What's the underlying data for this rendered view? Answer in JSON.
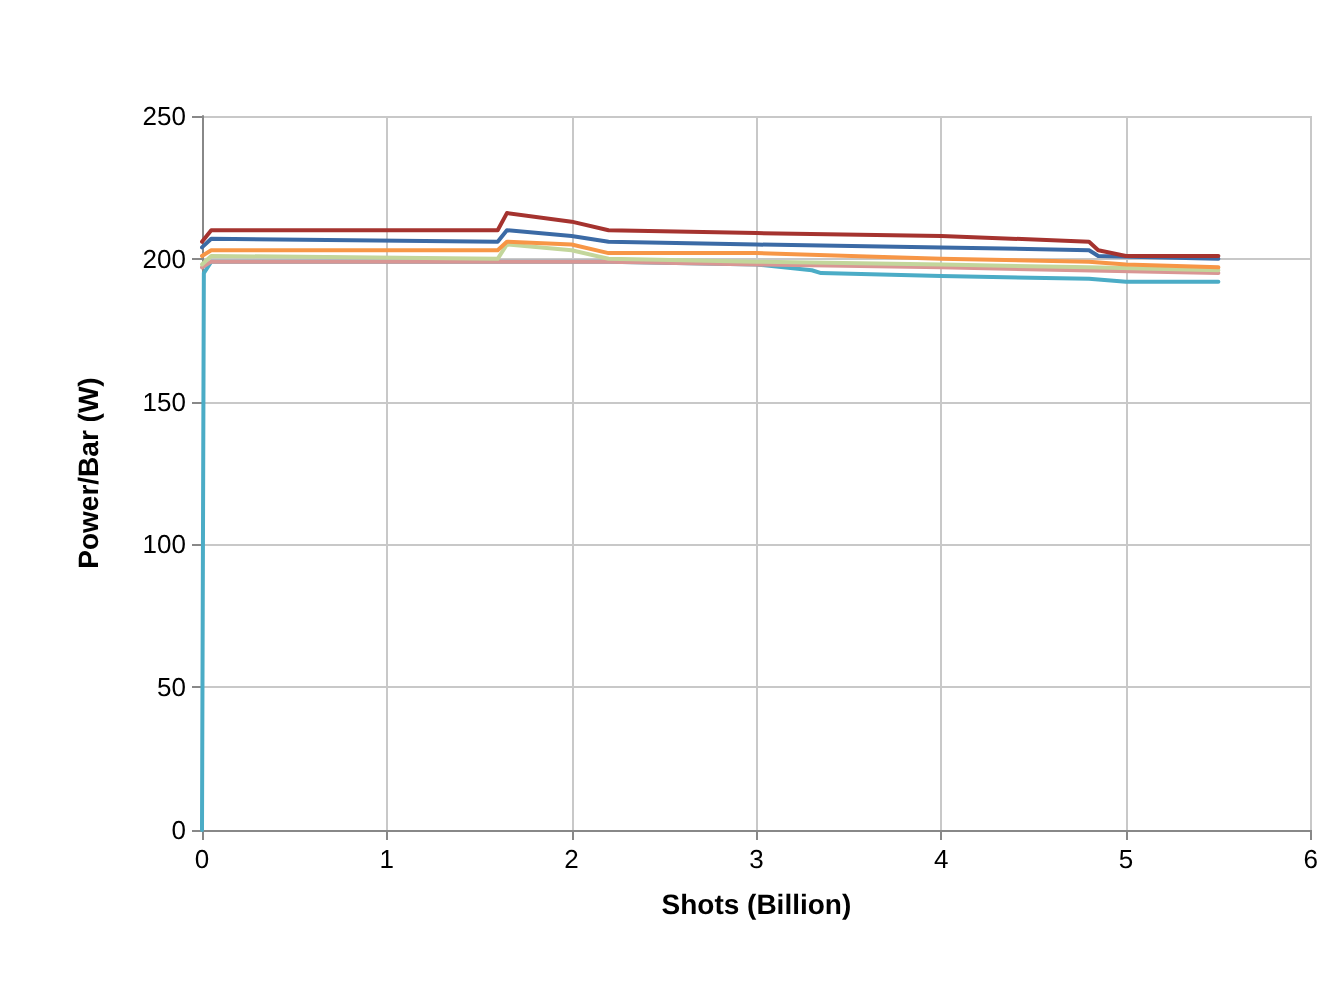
{
  "chart_data": {
    "type": "line",
    "xlabel": "Shots (Billion)",
    "ylabel": "Power/Bar (W)",
    "xlim": [
      0,
      6
    ],
    "xticks": [
      0,
      1,
      2,
      3,
      4,
      5,
      6
    ],
    "ylim": [
      0,
      250
    ],
    "yticks": [
      0,
      50,
      100,
      150,
      200,
      250
    ],
    "grid": true,
    "marker": "none",
    "line_style": "solid",
    "series": [
      {
        "color": "#4bacc6",
        "x": [
          0,
          0.01,
          0.05,
          1.6,
          2.2,
          3.0,
          3.3,
          3.35,
          4.0,
          4.8,
          5.0,
          5.5
        ],
        "values": [
          0,
          195,
          199,
          199,
          199,
          198,
          196,
          195,
          194,
          193,
          192,
          192
        ]
      },
      {
        "color": "#d99694",
        "x": [
          0,
          0.05,
          1.6,
          2.2,
          3.0,
          4.0,
          5.5
        ],
        "values": [
          197,
          199,
          199,
          199,
          198,
          197,
          195
        ]
      },
      {
        "color": "#c3d69b",
        "x": [
          0,
          0.05,
          1.6,
          1.65,
          2.0,
          2.2,
          3.0,
          4.0,
          4.8,
          5.5
        ],
        "values": [
          198,
          201,
          200,
          205,
          203,
          200,
          199,
          198,
          197,
          196
        ]
      },
      {
        "color": "#f79646",
        "x": [
          0,
          0.05,
          1.6,
          1.65,
          2.0,
          2.2,
          3.0,
          4.0,
          4.8,
          5.0,
          5.5
        ],
        "values": [
          201,
          203,
          203,
          206,
          205,
          202,
          202,
          200,
          199,
          198,
          197
        ]
      },
      {
        "color": "#3b6aa5",
        "x": [
          0,
          0.05,
          1.6,
          1.65,
          2.0,
          2.2,
          3.0,
          4.0,
          4.8,
          4.85,
          5.5
        ],
        "values": [
          204,
          207,
          206,
          210,
          208,
          206,
          205,
          204,
          203,
          201,
          200
        ]
      },
      {
        "color": "#a5332f",
        "x": [
          0,
          0.05,
          1.6,
          1.65,
          2.0,
          2.2,
          3.0,
          4.0,
          4.8,
          4.85,
          5.0,
          5.5
        ],
        "values": [
          206,
          210,
          210,
          216,
          213,
          210,
          209,
          208,
          206,
          203,
          201,
          201
        ]
      }
    ]
  }
}
